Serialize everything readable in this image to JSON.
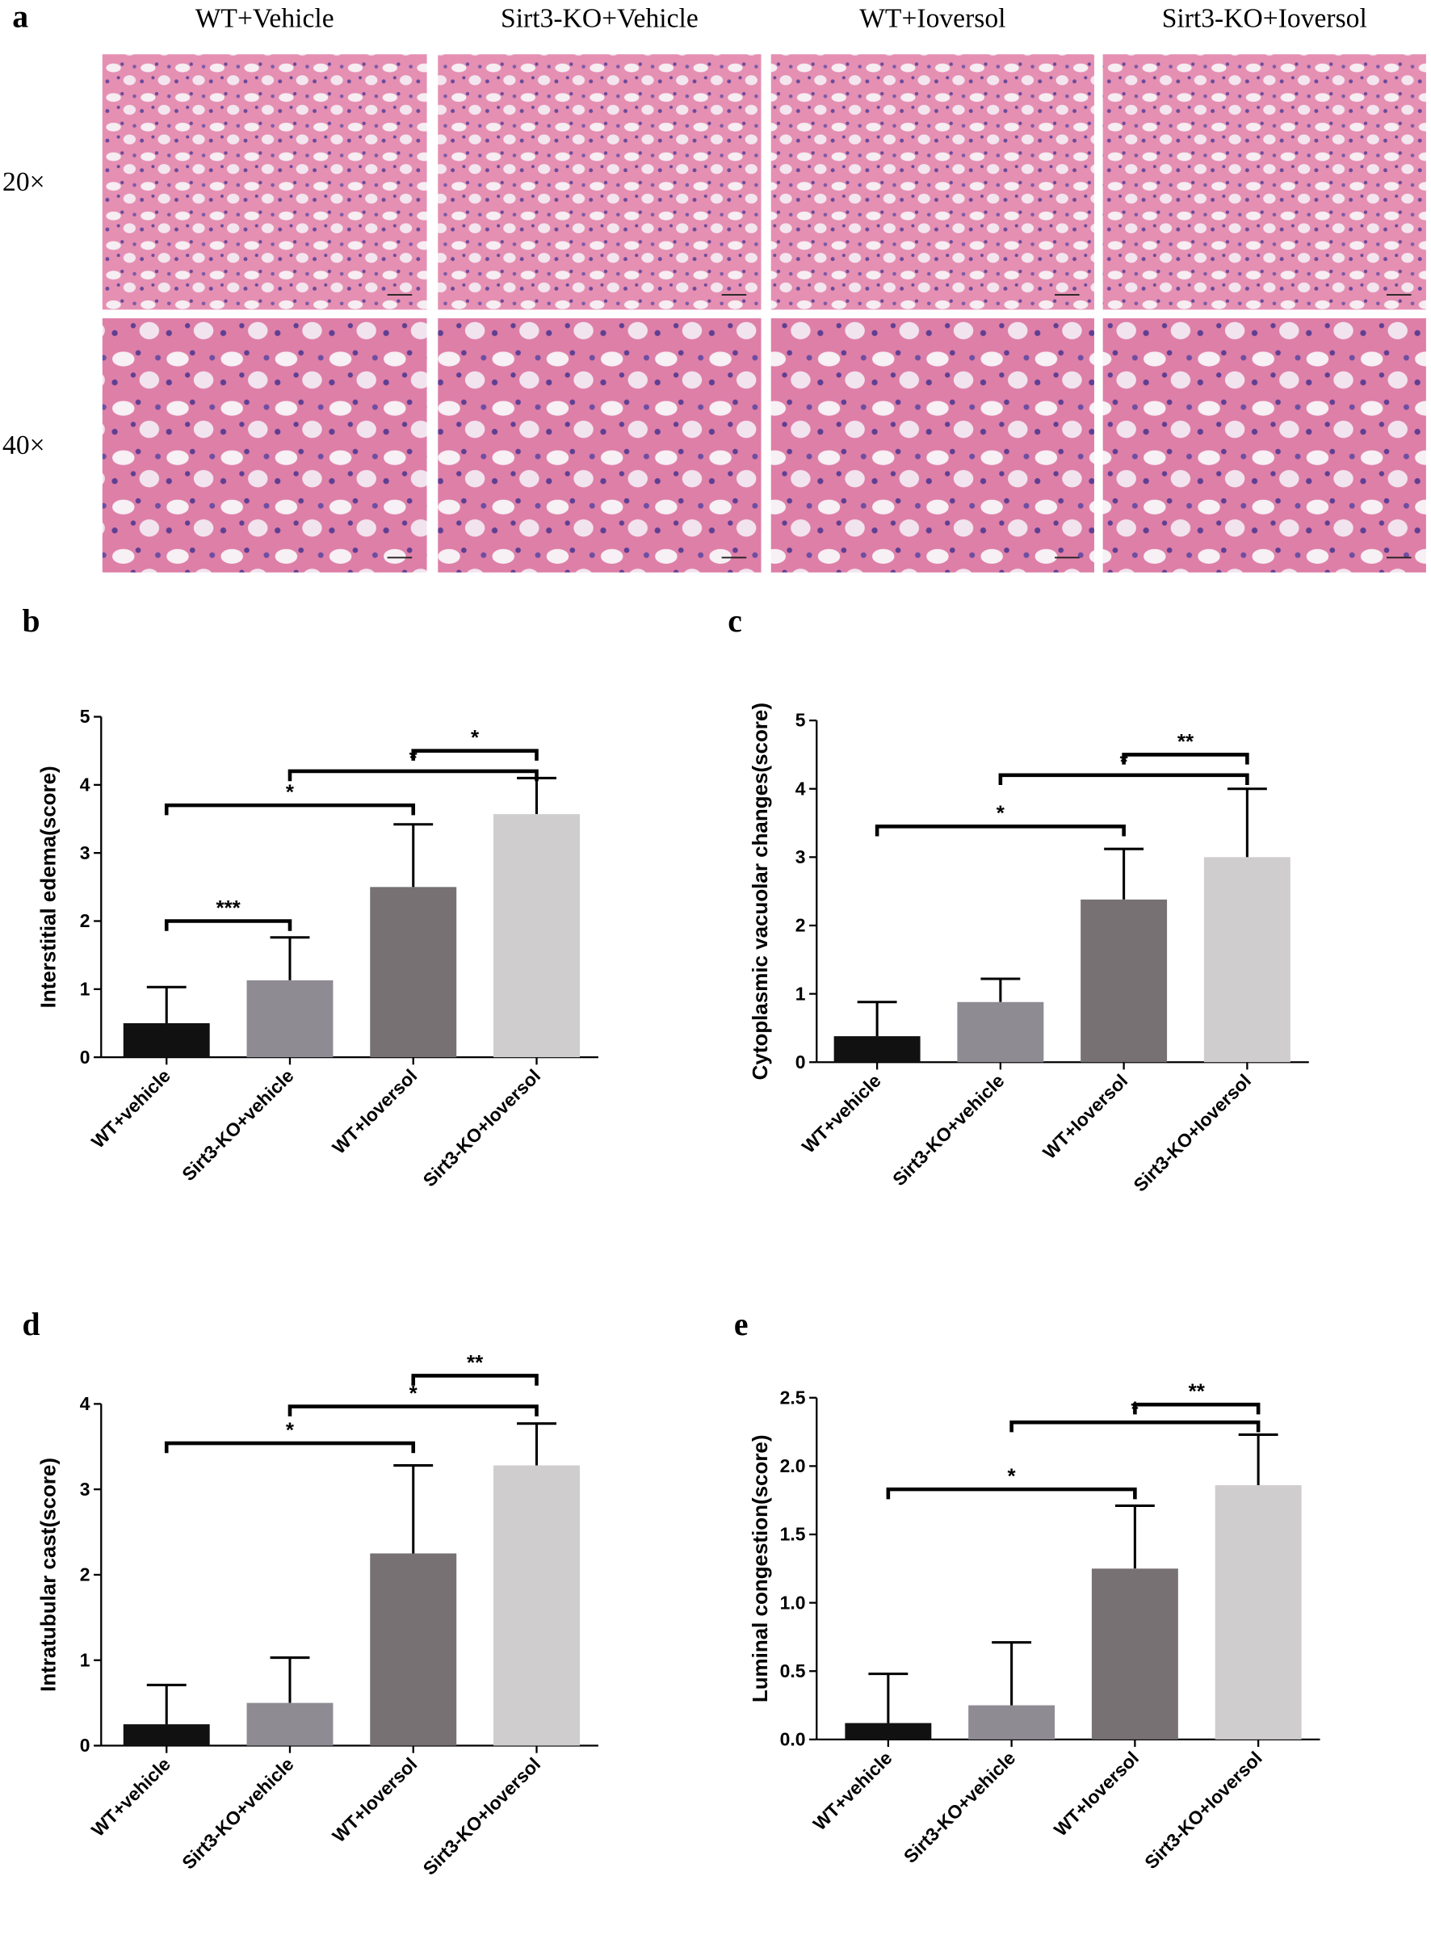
{
  "panel_a": {
    "label": "a",
    "columns": [
      "WT+Vehicle",
      "Sirt3-KO+Vehicle",
      "WT+Ioversol",
      "Sirt3-KO+Ioversol"
    ],
    "rows": [
      "20×",
      "40×"
    ]
  },
  "chart_data": [
    {
      "type": "bar",
      "panel": "b",
      "ylabel": "Interstitial edema(score)",
      "categories": [
        "WT+vehicle",
        "Sirt3-KO+vehicle",
        "WT+Ioversol",
        "Sirt3-KO+Ioversol"
      ],
      "values": [
        0.5,
        1.13,
        2.5,
        3.57
      ],
      "errors": [
        0.53,
        0.63,
        0.92,
        0.53
      ],
      "colors": [
        "#111111",
        "#8e8b93",
        "#777173",
        "#cfcdcd"
      ],
      "ylim": [
        0,
        5
      ],
      "yticks": [
        0,
        1,
        2,
        3,
        4,
        5
      ],
      "annotations": [
        {
          "text": "***",
          "between": [
            "WT+vehicle",
            "Sirt3-KO+vehicle"
          ],
          "y": 2.0
        },
        {
          "text": "*",
          "between": [
            "WT+vehicle",
            "WT+Ioversol"
          ],
          "y": 3.7
        },
        {
          "text": "*",
          "between": [
            "Sirt3-KO+vehicle",
            "Sirt3-KO+Ioversol"
          ],
          "y": 4.2
        },
        {
          "text": "*",
          "between": [
            "WT+Ioversol",
            "Sirt3-KO+Ioversol"
          ],
          "y": 4.5
        }
      ]
    },
    {
      "type": "bar",
      "panel": "c",
      "ylabel": "Cytoplasmic vacuolar changes(score)",
      "categories": [
        "WT+vehicle",
        "Sirt3-KO+vehicle",
        "WT+Ioversol",
        "Sirt3-KO+Ioversol"
      ],
      "values": [
        0.38,
        0.88,
        2.38,
        3.0
      ],
      "errors": [
        0.5,
        0.34,
        0.74,
        1.0
      ],
      "colors": [
        "#111111",
        "#8e8b93",
        "#777173",
        "#cfcdcd"
      ],
      "ylim": [
        0,
        5
      ],
      "yticks": [
        0,
        1,
        2,
        3,
        4,
        5
      ],
      "annotations": [
        {
          "text": "*",
          "between": [
            "WT+vehicle",
            "WT+Ioversol"
          ],
          "y": 3.45
        },
        {
          "text": "*",
          "between": [
            "Sirt3-KO+vehicle",
            "Sirt3-KO+Ioversol"
          ],
          "y": 4.2
        },
        {
          "text": "**",
          "between": [
            "WT+Ioversol",
            "Sirt3-KO+Ioversol"
          ],
          "y": 4.5
        }
      ]
    },
    {
      "type": "bar",
      "panel": "d",
      "ylabel": "Intratubular cast(score)",
      "categories": [
        "WT+vehicle",
        "Sirt3-KO+vehicle",
        "WT+Ioversol",
        "Sirt3-KO+Ioversol"
      ],
      "values": [
        0.25,
        0.5,
        2.25,
        3.28
      ],
      "errors": [
        0.46,
        0.53,
        1.03,
        0.49
      ],
      "colors": [
        "#111111",
        "#8e8b93",
        "#777173",
        "#cfcdcd"
      ],
      "ylim": [
        0,
        4
      ],
      "yticks": [
        0,
        1,
        2,
        3,
        4
      ],
      "annotations": [
        {
          "text": "*",
          "between": [
            "WT+vehicle",
            "WT+Ioversol"
          ],
          "y": 3.54
        },
        {
          "text": "*",
          "between": [
            "Sirt3-KO+vehicle",
            "Sirt3-KO+Ioversol"
          ],
          "y": 3.97
        },
        {
          "text": "**",
          "between": [
            "WT+Ioversol",
            "Sirt3-KO+Ioversol"
          ],
          "y": 4.33
        }
      ]
    },
    {
      "type": "bar",
      "panel": "e",
      "ylabel": "Luminal congestion(score)",
      "categories": [
        "WT+vehicle",
        "Sirt3-KO+vehicle",
        "WT+Ioversol",
        "Sirt3-KO+Ioversol"
      ],
      "values": [
        0.12,
        0.25,
        1.25,
        1.86
      ],
      "errors": [
        0.36,
        0.46,
        0.46,
        0.37
      ],
      "colors": [
        "#111111",
        "#8e8b93",
        "#777173",
        "#cfcdcd"
      ],
      "ylim": [
        0,
        2.5
      ],
      "yticks": [
        {
          "value": 0,
          "label": "0.0"
        },
        0.5,
        {
          "value": 1,
          "label": "1.0"
        },
        1.5,
        {
          "value": 2,
          "label": "2.0"
        },
        2.5
      ],
      "annotations": [
        {
          "text": "*",
          "between": [
            "WT+vehicle",
            "WT+Ioversol"
          ],
          "y": 1.83
        },
        {
          "text": "*",
          "between": [
            "Sirt3-KO+vehicle",
            "Sirt3-KO+Ioversol"
          ],
          "y": 2.32
        },
        {
          "text": "**",
          "between": [
            "WT+Ioversol",
            "Sirt3-KO+Ioversol"
          ],
          "y": 2.45
        }
      ]
    }
  ]
}
